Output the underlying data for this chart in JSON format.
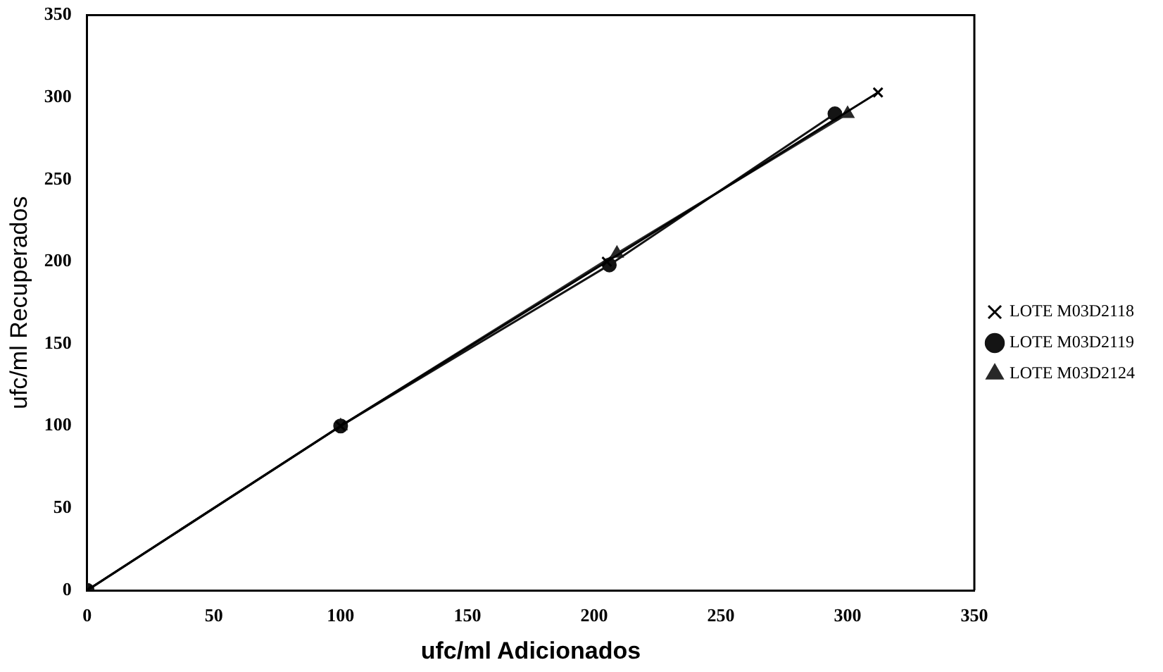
{
  "chart_data": {
    "type": "line",
    "xlabel": "ufc/ml Adicionados",
    "ylabel": "ufc/ml Recuperados",
    "xlim": [
      0,
      350
    ],
    "ylim": [
      0,
      350
    ],
    "xticks": [
      0,
      50,
      100,
      150,
      200,
      250,
      300,
      350
    ],
    "yticks": [
      0,
      50,
      100,
      150,
      200,
      250,
      300,
      350
    ],
    "grid": false,
    "legend": "right",
    "line_style": "solid",
    "series": [
      {
        "name": "LOTE M03D2118",
        "color": "#000000",
        "marker": "cross",
        "x": [
          0,
          100,
          205,
          312
        ],
        "values": [
          0,
          100,
          200,
          303
        ]
      },
      {
        "name": "LOTE M03D2119",
        "color": "#141414",
        "marker": "circle",
        "x": [
          0,
          100,
          206,
          295
        ],
        "values": [
          0,
          100,
          198,
          290
        ]
      },
      {
        "name": "LOTE M03D2124",
        "color": "#282828",
        "marker": "triangle",
        "x": [
          0,
          100,
          209,
          300
        ],
        "values": [
          0,
          100,
          205,
          290
        ]
      }
    ]
  }
}
